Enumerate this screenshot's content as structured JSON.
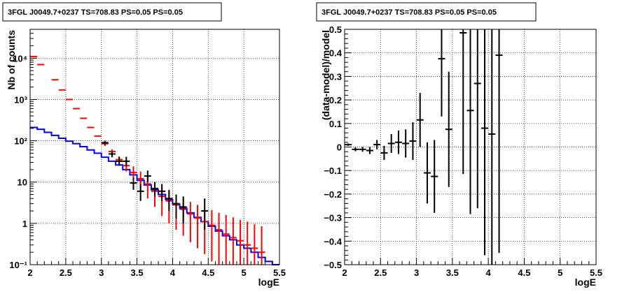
{
  "chart_data": [
    {
      "type": "scatter",
      "title": "3FGL J0049.7+0237 TS=708.83 PS=0.05 PS=0.05",
      "xlabel": "logE",
      "ylabel": "Nb of counts",
      "xlim": [
        2,
        5.5
      ],
      "ylim": [
        0.1,
        50000
      ],
      "yscale": "log",
      "grid": true,
      "x_ticks": [
        "2",
        "2.5",
        "3",
        "3.5",
        "4",
        "4.5",
        "5",
        "5.5"
      ],
      "y_ticks": [
        {
          "label": "10⁻¹",
          "value": 0.1
        },
        {
          "label": "1",
          "value": 1
        },
        {
          "label": "10",
          "value": 10
        },
        {
          "label": "10²",
          "value": 100
        },
        {
          "label": "10³",
          "value": 1000
        },
        {
          "label": "10⁴",
          "value": 10000
        }
      ],
      "model_colors": {
        "total": "#ff0000",
        "component": "#0000ff",
        "data": "#000000"
      },
      "total_model": [
        {
          "x": 2.05,
          "y": 11000,
          "lo": 11000,
          "hi": 11000
        },
        {
          "x": 2.15,
          "y": 7000,
          "lo": 7000,
          "hi": 7000
        },
        {
          "x": 2.35,
          "y": 3000,
          "lo": 3000,
          "hi": 3000
        },
        {
          "x": 2.45,
          "y": 1700,
          "lo": 1700,
          "hi": 1700
        },
        {
          "x": 2.55,
          "y": 1000,
          "lo": 1000,
          "hi": 1000
        },
        {
          "x": 2.65,
          "y": 600,
          "lo": 600,
          "hi": 600
        },
        {
          "x": 2.75,
          "y": 350,
          "lo": 350,
          "hi": 350
        },
        {
          "x": 2.85,
          "y": 210,
          "lo": 210,
          "hi": 210
        },
        {
          "x": 2.95,
          "y": 130,
          "lo": 130,
          "hi": 130
        },
        {
          "x": 3.05,
          "y": 85,
          "lo": 75,
          "hi": 95
        },
        {
          "x": 3.15,
          "y": 55,
          "lo": 48,
          "hi": 62
        },
        {
          "x": 3.25,
          "y": 35,
          "lo": 28,
          "hi": 42
        },
        {
          "x": 3.35,
          "y": 25,
          "lo": 18,
          "hi": 32
        },
        {
          "x": 3.45,
          "y": 17,
          "lo": 11,
          "hi": 24
        },
        {
          "x": 3.55,
          "y": 12,
          "lo": 6,
          "hi": 18
        },
        {
          "x": 3.65,
          "y": 9,
          "lo": 4,
          "hi": 14
        },
        {
          "x": 3.75,
          "y": 6,
          "lo": 2.5,
          "hi": 10
        },
        {
          "x": 3.85,
          "y": 4.5,
          "lo": 1.5,
          "hi": 8
        },
        {
          "x": 3.95,
          "y": 3.5,
          "lo": 1,
          "hi": 6
        },
        {
          "x": 4.05,
          "y": 2.8,
          "lo": 0.7,
          "hi": 5
        },
        {
          "x": 4.15,
          "y": 2.2,
          "lo": 0.5,
          "hi": 4
        },
        {
          "x": 4.25,
          "y": 1.7,
          "lo": 0.35,
          "hi": 3.3
        },
        {
          "x": 4.35,
          "y": 1.35,
          "lo": 0.25,
          "hi": 2.8
        },
        {
          "x": 4.45,
          "y": 1.1,
          "lo": 0.18,
          "hi": 2.3
        },
        {
          "x": 4.55,
          "y": 0.9,
          "lo": 0.12,
          "hi": 2.1
        },
        {
          "x": 4.65,
          "y": 0.7,
          "lo": 0.1,
          "hi": 1.8
        },
        {
          "x": 4.75,
          "y": 0.55,
          "lo": 0.1,
          "hi": 1.6
        },
        {
          "x": 4.85,
          "y": 0.45,
          "lo": 0.1,
          "hi": 1.4
        },
        {
          "x": 4.95,
          "y": 0.38,
          "lo": 0.1,
          "hi": 1.2
        },
        {
          "x": 5.05,
          "y": 0.3,
          "lo": 0.1,
          "hi": 1.1
        },
        {
          "x": 5.15,
          "y": 0.25,
          "lo": 0.1,
          "hi": 0.95
        },
        {
          "x": 5.25,
          "y": 0.2,
          "lo": 0.1,
          "hi": 0.85
        }
      ],
      "component_model": {
        "edges": [
          2.0,
          2.1,
          2.2,
          2.3,
          2.4,
          2.5,
          2.6,
          2.7,
          2.8,
          2.9,
          3.0,
          3.1,
          3.2,
          3.3,
          3.4,
          3.5,
          3.6,
          3.7,
          3.8,
          3.9,
          4.0,
          4.1,
          4.2,
          4.3,
          4.4,
          4.5,
          4.6,
          4.7,
          4.8,
          4.9,
          5.0,
          5.1,
          5.2,
          5.3,
          5.4,
          5.5
        ],
        "values": [
          210,
          190,
          160,
          135,
          115,
          98,
          85,
          72,
          60,
          50,
          40,
          32,
          26,
          20,
          15,
          11,
          8.5,
          6.5,
          5,
          3.8,
          2.9,
          2.3,
          1.8,
          1.4,
          1.1,
          0.85,
          0.65,
          0.5,
          0.4,
          0.3,
          0.25,
          0.2,
          0.15,
          0.12,
          0.1
        ]
      },
      "data_points": [
        {
          "x": 3.05,
          "y": 90,
          "lo": 80,
          "hi": 100
        },
        {
          "x": 3.15,
          "y": 48,
          "lo": 40,
          "hi": 56
        },
        {
          "x": 3.25,
          "y": 32,
          "lo": 25,
          "hi": 40
        },
        {
          "x": 3.35,
          "y": 32,
          "lo": 24,
          "hi": 41
        },
        {
          "x": 3.45,
          "y": 9.5,
          "lo": 6.5,
          "hi": 13
        },
        {
          "x": 3.55,
          "y": 6,
          "lo": 3.5,
          "hi": 9
        },
        {
          "x": 3.65,
          "y": 14,
          "lo": 10,
          "hi": 19
        },
        {
          "x": 3.75,
          "y": 7,
          "lo": 4.5,
          "hi": 10
        },
        {
          "x": 3.85,
          "y": 6,
          "lo": 3.5,
          "hi": 9
        },
        {
          "x": 3.95,
          "y": 4,
          "lo": 2,
          "hi": 6.5
        },
        {
          "x": 4.05,
          "y": 3,
          "lo": 1.3,
          "hi": 5
        },
        {
          "x": 4.15,
          "y": 2.5,
          "lo": 1,
          "hi": 4.5
        },
        {
          "x": 4.45,
          "y": 2,
          "lo": 0.7,
          "hi": 4
        }
      ]
    },
    {
      "type": "scatter",
      "title": "3FGL J0049.7+0237 TS=708.83 PS=0.05 PS=0.05",
      "xlabel": "logE",
      "ylabel": "(data-model)/model",
      "xlim": [
        2,
        5.5
      ],
      "ylim": [
        -0.5,
        0.5
      ],
      "grid": true,
      "x_ticks": [
        "2",
        "2.5",
        "3",
        "3.5",
        "4",
        "4.5",
        "5",
        "5.5"
      ],
      "y_ticks": [
        "−0.5",
        "−0.4",
        "−0.3",
        "−0.2",
        "−0.1",
        "0",
        "0.1",
        "0.2",
        "0.3",
        "0.4",
        "0.5"
      ],
      "residuals": [
        {
          "x": 2.05,
          "y": 0.01,
          "err": 0.005
        },
        {
          "x": 2.15,
          "y": -0.01,
          "err": 0.008
        },
        {
          "x": 2.25,
          "y": -0.01,
          "err": 0.01
        },
        {
          "x": 2.35,
          "y": -0.015,
          "err": 0.015
        },
        {
          "x": 2.45,
          "y": 0.01,
          "err": 0.02
        },
        {
          "x": 2.55,
          "y": -0.025,
          "err": 0.03
        },
        {
          "x": 2.65,
          "y": 0.015,
          "err": 0.04
        },
        {
          "x": 2.75,
          "y": 0.02,
          "err": 0.05
        },
        {
          "x": 2.85,
          "y": 0.015,
          "err": 0.06
        },
        {
          "x": 2.95,
          "y": 0.025,
          "err": 0.08
        },
        {
          "x": 3.05,
          "y": 0.115,
          "err": 0.115
        },
        {
          "x": 3.15,
          "y": -0.11,
          "err": 0.13
        },
        {
          "x": 3.25,
          "y": -0.125,
          "err": 0.155
        },
        {
          "x": 3.35,
          "y": 0.375,
          "err": 0.245
        },
        {
          "x": 3.45,
          "y": 0.075,
          "err": 0.245
        },
        {
          "x": 3.65,
          "y": 0.485,
          "err": 0.6
        },
        {
          "x": 3.75,
          "y": 0.155,
          "err": 0.44
        },
        {
          "x": 3.85,
          "y": 0.27,
          "err": 0.53
        },
        {
          "x": 3.95,
          "y": 0.08,
          "err": 0.54
        },
        {
          "x": 4.05,
          "y": 0.055,
          "err": 0.6
        },
        {
          "x": 4.15,
          "y": 0.39,
          "err": 0.84
        }
      ]
    }
  ]
}
